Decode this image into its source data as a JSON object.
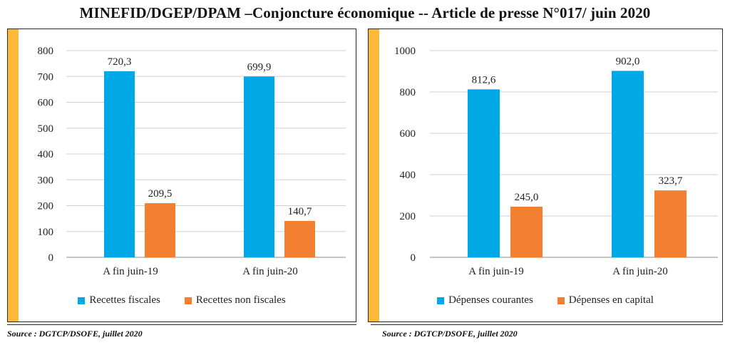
{
  "header": {
    "title": "MINEFID/DGEP/DPAM –Conjoncture économique -- Article de presse N°017/ juin 2020"
  },
  "colors": {
    "blue": "#00A9E6",
    "orange": "#F28030",
    "accent": "#FDB93A",
    "grid": "#cfcfcf",
    "axis": "#8a8a8a"
  },
  "chart_data": [
    {
      "type": "bar",
      "categories": [
        "A fin juin-19",
        "A fin juin-20"
      ],
      "series": [
        {
          "name": "Recettes fiscales",
          "values": [
            720.3,
            699.9
          ],
          "labels": [
            "720,3",
            "699,9"
          ],
          "color": "#00A9E6"
        },
        {
          "name": "Recettes non fiscales",
          "values": [
            209.5,
            140.7
          ],
          "labels": [
            "209,5",
            "140,7"
          ],
          "color": "#F28030"
        }
      ],
      "ylim": [
        0,
        800
      ],
      "yticks": [
        "0",
        "100",
        "200",
        "300",
        "400",
        "500",
        "600",
        "700",
        "800"
      ],
      "grid": true,
      "legend": "bottom",
      "source": "Source : DGTCP/DSOFE, juillet 2020"
    },
    {
      "type": "bar",
      "categories": [
        "A fin juin-19",
        "A fin juin-20"
      ],
      "series": [
        {
          "name": "Dépenses courantes",
          "values": [
            812.6,
            902.0
          ],
          "labels": [
            "812,6",
            "902,0"
          ],
          "color": "#00A9E6"
        },
        {
          "name": "Dépenses en capital",
          "values": [
            245.0,
            323.7
          ],
          "labels": [
            "245,0",
            "323,7"
          ],
          "color": "#F28030"
        }
      ],
      "ylim": [
        0,
        1000
      ],
      "yticks": [
        "0",
        "200",
        "400",
        "600",
        "800",
        "1000"
      ],
      "grid": true,
      "legend": "bottom",
      "source": "Source : DGTCP/DSOFE, juillet 2020"
    }
  ]
}
